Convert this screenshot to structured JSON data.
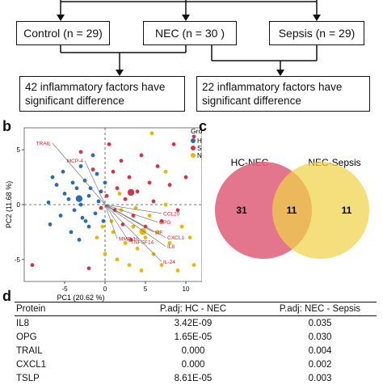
{
  "panel_a": {
    "groups": [
      "Control (n = 29)",
      "NEC (n = 30 )",
      "Sepsis (n = 29)"
    ],
    "results": [
      "42 inflammatory factors have significant difference",
      "22 inflammatory factors have significant difference"
    ]
  },
  "panel_b": {
    "letter": "b",
    "legend_title": "Group",
    "colors": {
      "HC": "#2b6cb0",
      "Sepsis": "#d6334a",
      "NEC": "#e6b800",
      "loading": "#cc2222"
    },
    "chart_data": {
      "type": "scatter",
      "xlabel": "PC1 (20.62 %)",
      "ylabel": "PC2 (11.68 %)",
      "xlim": [
        -10,
        12
      ],
      "ylim": [
        -7,
        7
      ],
      "xticks": [
        -5,
        0,
        5,
        10
      ],
      "yticks": [
        -5,
        0,
        5
      ],
      "series": [
        {
          "name": "HC",
          "points": [
            [
              -6.5,
              2.5
            ],
            [
              -6,
              1.8
            ],
            [
              -5.2,
              3
            ],
            [
              -5,
              1
            ],
            [
              -4.5,
              0.5
            ],
            [
              -4,
              2
            ],
            [
              -3.8,
              -0.5
            ],
            [
              -3.5,
              1.5
            ],
            [
              -3,
              3.5
            ],
            [
              -3,
              0
            ],
            [
              -2.8,
              -1.2
            ],
            [
              -2.5,
              2.2
            ],
            [
              -2,
              0.8
            ],
            [
              -2,
              -2
            ],
            [
              -1.8,
              1.5
            ],
            [
              -1.5,
              4.5
            ],
            [
              -1.2,
              -0.8
            ],
            [
              -1,
              2.8
            ],
            [
              -0.8,
              0.3
            ],
            [
              -0.5,
              1.2
            ],
            [
              -0.2,
              -1.5
            ],
            [
              0,
              2
            ],
            [
              -5.5,
              -1
            ],
            [
              -7,
              0.2
            ],
            [
              -6.8,
              -1.8
            ],
            [
              -4.2,
              -2.5
            ],
            [
              -3.2,
              -3.2
            ],
            [
              -2.4,
              -1.5
            ]
          ]
        },
        {
          "name": "Sepsis",
          "points": [
            [
              -3,
              4.8
            ],
            [
              -1.5,
              3.2
            ],
            [
              0.5,
              5.5
            ],
            [
              1,
              3
            ],
            [
              1.5,
              1.5
            ],
            [
              2,
              4
            ],
            [
              2.5,
              0.5
            ],
            [
              3,
              2.5
            ],
            [
              3.5,
              -1
            ],
            [
              4,
              1.2
            ],
            [
              4.5,
              4.5
            ],
            [
              5,
              -2
            ],
            [
              5.5,
              2
            ],
            [
              6,
              0.3
            ],
            [
              6.5,
              3.5
            ],
            [
              7,
              -1.5
            ],
            [
              8,
              1.8
            ],
            [
              8.5,
              5.5
            ],
            [
              9,
              -0.5
            ],
            [
              10,
              2.5
            ],
            [
              0.2,
              0.8
            ],
            [
              -0.5,
              -0.3
            ],
            [
              1.2,
              -0.5
            ],
            [
              2.2,
              -1.8
            ],
            [
              3.2,
              -3.2
            ],
            [
              -9,
              -5.5
            ],
            [
              -2,
              -5.8
            ],
            [
              11,
              6.2
            ]
          ]
        },
        {
          "name": "NEC",
          "points": [
            [
              -1,
              -3
            ],
            [
              0,
              -4.5
            ],
            [
              1,
              -2.5
            ],
            [
              1.5,
              -5
            ],
            [
              2.5,
              -3.5
            ],
            [
              3,
              -5.5
            ],
            [
              3.5,
              -2
            ],
            [
              4,
              -4
            ],
            [
              4.5,
              -6
            ],
            [
              5,
              -3
            ],
            [
              5.5,
              -1
            ],
            [
              6,
              -4.5
            ],
            [
              6.5,
              -2.5
            ],
            [
              7,
              -5.5
            ],
            [
              7.5,
              0
            ],
            [
              8,
              -3.5
            ],
            [
              9,
              -6
            ],
            [
              9.5,
              -2
            ],
            [
              10.5,
              -3
            ],
            [
              2,
              -0.5
            ],
            [
              0.8,
              -1.5
            ],
            [
              -0.3,
              -2
            ],
            [
              1.8,
              1
            ],
            [
              3.8,
              -0.3
            ],
            [
              11,
              -5.5
            ],
            [
              5.8,
              6.5
            ],
            [
              7.5,
              3
            ]
          ]
        }
      ],
      "loadings": [
        {
          "label": "TRAIL",
          "x": -6.5,
          "y": 5.6
        },
        {
          "label": "MCP-4",
          "x": -2.5,
          "y": 4
        },
        {
          "label": "CCL20",
          "x": 7,
          "y": -0.8
        },
        {
          "label": "OPG",
          "x": 6.5,
          "y": -1.6
        },
        {
          "label": "LIF",
          "x": 6,
          "y": -2.5
        },
        {
          "label": "CXCL1",
          "x": 7.5,
          "y": -3
        },
        {
          "label": "IL8",
          "x": 7.5,
          "y": -3.8
        },
        {
          "label": "TNFSF14",
          "x": 3,
          "y": -3.4
        },
        {
          "label": "MMP-10",
          "x": 1.5,
          "y": -3.1
        },
        {
          "label": "IL-24",
          "x": 7,
          "y": -5.2
        }
      ]
    }
  },
  "panel_c": {
    "letter": "c",
    "left_label": "HC-NEC",
    "right_label": "NEC-Sepsis",
    "left_only": "31",
    "overlap": "11",
    "right_only": "11",
    "colors": {
      "left": "#e06680",
      "right": "#f0d24a"
    }
  },
  "panel_d": {
    "letter": "d",
    "headers": [
      "Protein",
      "P.adj: HC - NEC",
      "P.adj: NEC - Sepsis"
    ],
    "rows": [
      [
        "IL8",
        "3.42E-09",
        "0.035"
      ],
      [
        "OPG",
        "1.65E-05",
        "0.030"
      ],
      [
        "TRAIL",
        "0.000",
        "0.004"
      ],
      [
        "CXCL1",
        "0.000",
        "0.002"
      ],
      [
        "TSLP",
        "8.61E-05",
        "0.003"
      ]
    ]
  }
}
